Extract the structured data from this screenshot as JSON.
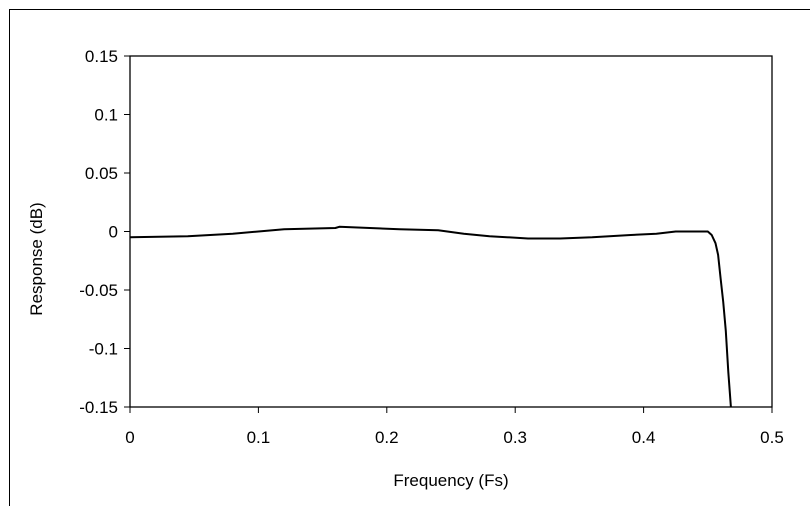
{
  "chart_data": {
    "type": "line",
    "title": "",
    "xlabel": "Frequency (Fs)",
    "ylabel": "Response (dB)",
    "xlim": [
      0,
      0.5
    ],
    "ylim": [
      -0.15,
      0.15
    ],
    "x_ticks": [
      0,
      0.1,
      0.2,
      0.3,
      0.4,
      0.5
    ],
    "x_tick_labels": [
      "0",
      "0.1",
      "0.2",
      "0.3",
      "0.4",
      "0.5"
    ],
    "y_ticks": [
      0.15,
      0.1,
      0.05,
      0,
      -0.05,
      -0.1,
      -0.15
    ],
    "y_tick_labels": [
      "0.15",
      "0.1",
      "0.05",
      "0",
      "-0.05",
      "-0.1",
      "-0.15"
    ],
    "grid": false,
    "legend": "none",
    "series": [
      {
        "color": "#000000",
        "x": [
          0,
          0.045,
          0.08,
          0.1,
          0.12,
          0.16,
          0.163,
          0.21,
          0.24,
          0.26,
          0.28,
          0.31,
          0.335,
          0.36,
          0.39,
          0.41,
          0.425,
          0.45,
          0.453,
          0.456,
          0.458,
          0.46,
          0.462,
          0.464,
          0.466,
          0.468
        ],
        "y": [
          -0.005,
          -0.004,
          -0.002,
          0.0,
          0.002,
          0.003,
          0.004,
          0.002,
          0.001,
          -0.002,
          -0.004,
          -0.006,
          -0.006,
          -0.005,
          -0.003,
          -0.002,
          0.0,
          0.0,
          -0.003,
          -0.01,
          -0.02,
          -0.04,
          -0.06,
          -0.085,
          -0.12,
          -0.15
        ]
      }
    ]
  }
}
